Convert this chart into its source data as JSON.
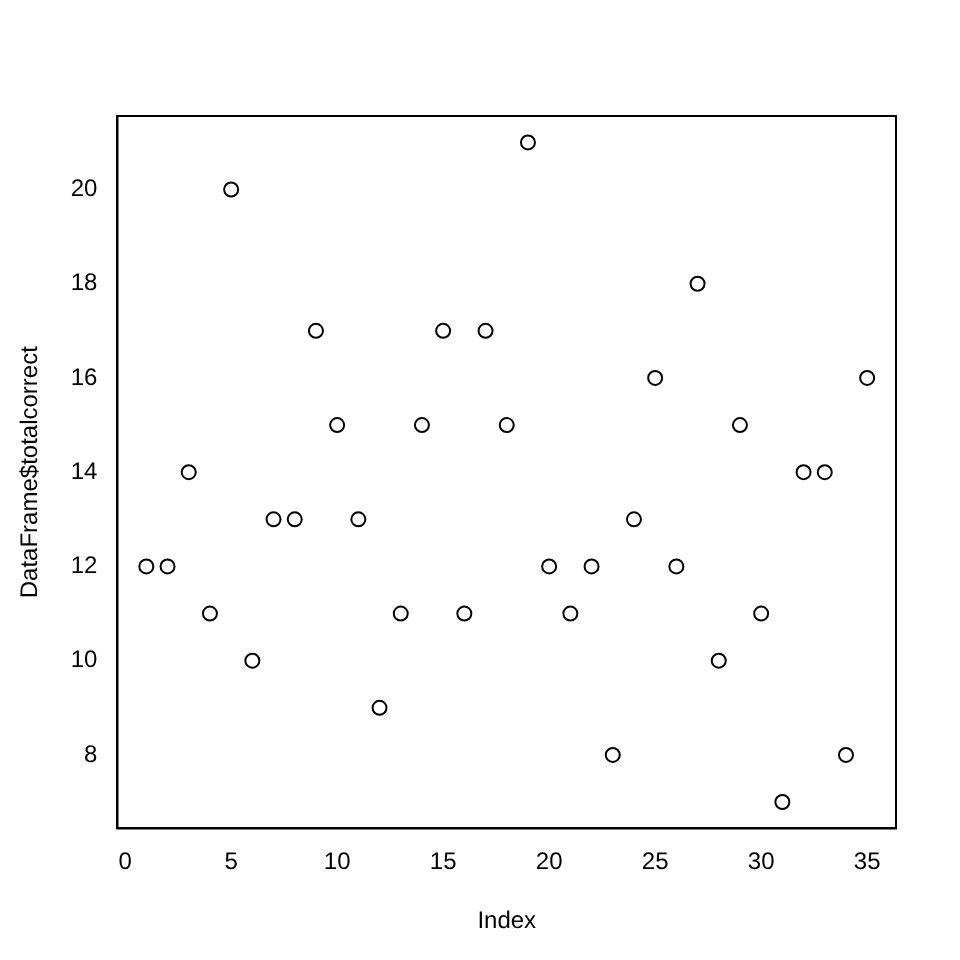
{
  "chart_data": {
    "type": "scatter",
    "xlabel": "Index",
    "ylabel": "DataFrame$totalcorrect",
    "x": [
      1,
      2,
      3,
      4,
      5,
      6,
      7,
      8,
      9,
      10,
      11,
      12,
      13,
      14,
      15,
      16,
      17,
      18,
      19,
      20,
      21,
      22,
      23,
      24,
      25,
      26,
      27,
      28,
      29,
      30,
      31,
      32,
      33,
      34,
      35
    ],
    "series": [
      {
        "color": "#000000",
        "values": [
          12,
          12,
          14,
          11,
          20,
          10,
          13,
          13,
          17,
          15,
          13,
          9,
          11,
          15,
          17,
          11,
          17,
          15,
          21,
          12,
          11,
          12,
          8,
          13,
          16,
          12,
          18,
          10,
          15,
          11,
          7,
          14,
          14,
          8,
          16
        ]
      }
    ],
    "xlim": [
      -0.36,
      36.36
    ],
    "ylim": [
      6.44,
      21.56
    ],
    "xticks": [
      0,
      5,
      10,
      15,
      20,
      25,
      30,
      35
    ],
    "yticks": [
      8,
      10,
      12,
      14,
      16,
      18,
      20
    ],
    "grid": false,
    "legend": false,
    "marker": "circle"
  }
}
